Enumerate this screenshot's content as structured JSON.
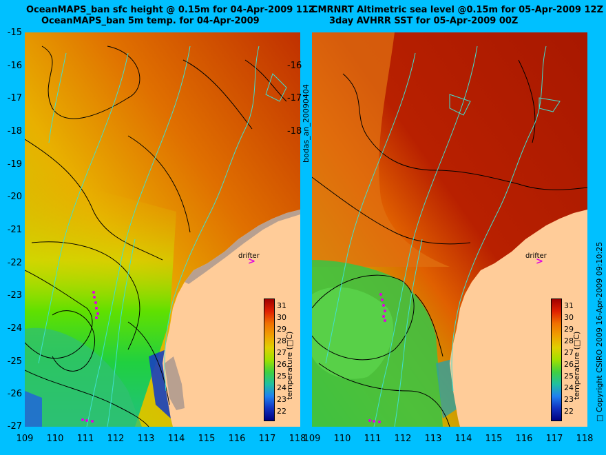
{
  "left_title": {
    "line1": "OceanMAPS_ban sfc height @ 0.15m for 04-Apr-2009 11Z",
    "line2": "OceanMAPS_ban 5m temp. for 04-Apr-2009"
  },
  "right_title": {
    "line1": "CMRNRT Altimetric sea level  @0.15m  for 05-Apr-2009 12Z",
    "line2": "3day AVHRR SST for 05-Apr-2009 00Z"
  },
  "y_ticks": [
    "-15",
    "-16",
    "-17",
    "-18",
    "-19",
    "-20",
    "-21",
    "-22",
    "-23",
    "-24",
    "-25",
    "-26",
    "-27"
  ],
  "x_ticks": [
    "109",
    "110",
    "111",
    "112",
    "113",
    "114",
    "115",
    "116",
    "117",
    "118"
  ],
  "colorbar": {
    "ticks": [
      "31",
      "30",
      "29",
      "28",
      "27",
      "26",
      "25",
      "24",
      "23",
      "22"
    ],
    "title": "temperature (□C)"
  },
  "drifter_label": "drifter",
  "middle_label": "bodas_an_20090404",
  "copyright": "□ Copyright CSIRO 2009  16-Apr-2009 09:10:25",
  "colors": {
    "background": "#00c0ff",
    "land": "#ffcc99",
    "coastline": "#40e0d0",
    "contour": "#000000",
    "drifter": "#e000e0"
  }
}
